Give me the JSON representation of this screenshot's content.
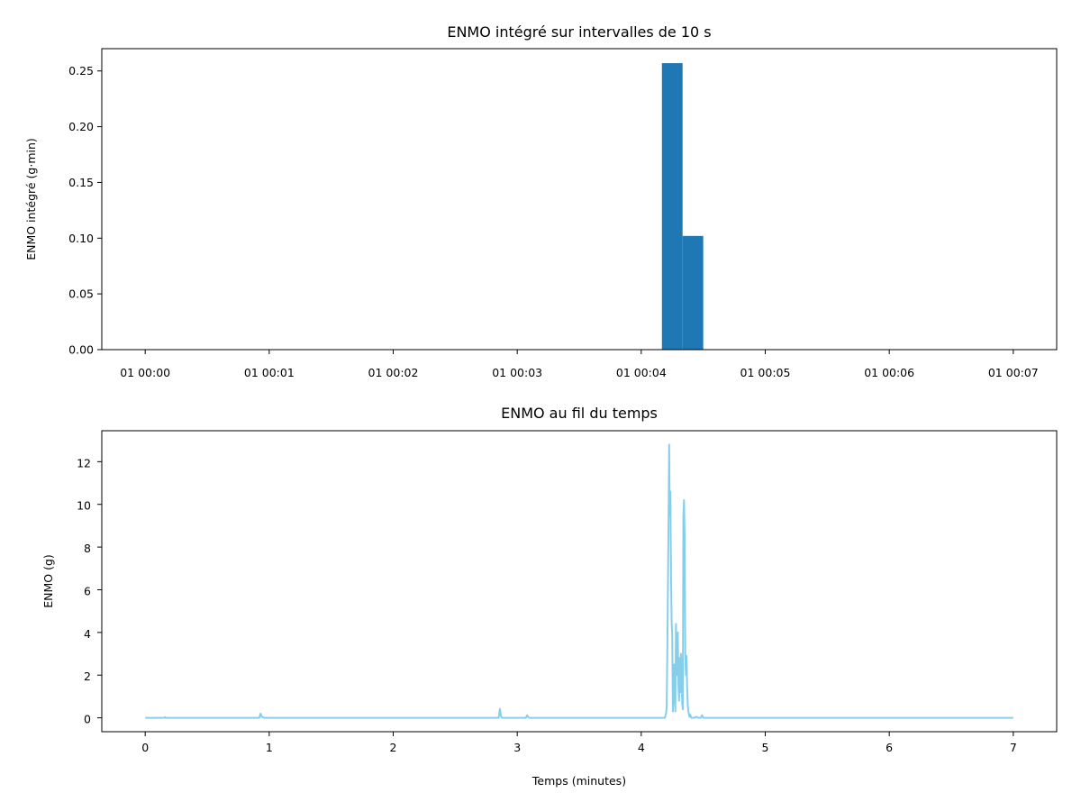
{
  "colors": {
    "bar": "#1f77b4",
    "line": "#87ceeb",
    "axis": "#000000",
    "background": "#ffffff"
  },
  "chart_data": [
    {
      "type": "bar",
      "title": "ENMO intégré sur intervalles de 10 s",
      "xlabel": "",
      "ylabel": "ENMO intégré (g·min)",
      "x_tick_labels": [
        "01 00:00",
        "01 00:01",
        "01 00:02",
        "01 00:03",
        "01 00:04",
        "01 00:05",
        "01 00:06",
        "01 00:07"
      ],
      "y_tick_labels": [
        "0.00",
        "0.05",
        "0.10",
        "0.15",
        "0.20",
        "0.25"
      ],
      "y_ticks": [
        0,
        0.05,
        0.1,
        0.15,
        0.2,
        0.25
      ],
      "xlim_seconds": [
        -21,
        441
      ],
      "ylim": [
        0,
        0.27
      ],
      "bar_width_seconds": 10,
      "bars": [
        {
          "start": "00:04:10",
          "value": 0.257
        },
        {
          "start": "00:04:20",
          "value": 0.102
        }
      ],
      "grid": false
    },
    {
      "type": "line",
      "title": "ENMO au fil du temps",
      "xlabel": "Temps (minutes)",
      "ylabel": "ENMO (g)",
      "x_ticks": [
        0,
        1,
        2,
        3,
        4,
        5,
        6,
        7
      ],
      "x_tick_labels": [
        "0",
        "1",
        "2",
        "3",
        "4",
        "5",
        "6",
        "7"
      ],
      "y_ticks": [
        0,
        2,
        4,
        6,
        8,
        10,
        12
      ],
      "y_tick_labels": [
        "0",
        "2",
        "4",
        "6",
        "8",
        "10",
        "12"
      ],
      "xlim": [
        -0.35,
        7.35
      ],
      "ylim": [
        -0.65,
        13.45
      ],
      "grid": false,
      "series": [
        {
          "x": [
            0,
            0.15,
            0.16,
            0.17,
            0.92,
            0.93,
            0.94,
            0.96,
            2.85,
            2.86,
            2.87,
            2.88,
            3.07,
            3.08,
            3.09,
            3.1,
            4.19,
            4.2,
            4.205,
            4.21,
            4.215,
            4.22,
            4.225,
            4.23,
            4.235,
            4.24,
            4.245,
            4.25,
            4.255,
            4.26,
            4.265,
            4.27,
            4.275,
            4.28,
            4.285,
            4.29,
            4.295,
            4.3,
            4.305,
            4.31,
            4.315,
            4.32,
            4.325,
            4.33,
            4.335,
            4.34,
            4.345,
            4.35,
            4.355,
            4.36,
            4.365,
            4.37,
            4.375,
            4.38,
            4.385,
            4.39,
            4.395,
            4.4,
            4.405,
            4.41,
            4.415,
            4.42,
            4.425,
            4.43,
            4.44,
            4.46,
            4.48,
            4.49,
            4.5,
            7
          ],
          "y": [
            0,
            0,
            0.03,
            0,
            0,
            0.2,
            0.05,
            0,
            0,
            0.42,
            0.05,
            0,
            0,
            0.12,
            0.03,
            0,
            0,
            0.2,
            0.5,
            2.9,
            6,
            9,
            12.8,
            9.5,
            10.6,
            7,
            4.5,
            3.8,
            0.3,
            1.6,
            2.5,
            0.8,
            0.3,
            4.4,
            2,
            3.2,
            4,
            1.5,
            0.8,
            2.8,
            1.2,
            3,
            2,
            0.7,
            0.4,
            9.5,
            10.2,
            8.5,
            3,
            2,
            2.9,
            1.5,
            0.6,
            0.3,
            0.15,
            0.05,
            0.15,
            0.05,
            0,
            0,
            0,
            0,
            0,
            0,
            0.05,
            0,
            0,
            0.12,
            0,
            0
          ]
        }
      ]
    }
  ]
}
